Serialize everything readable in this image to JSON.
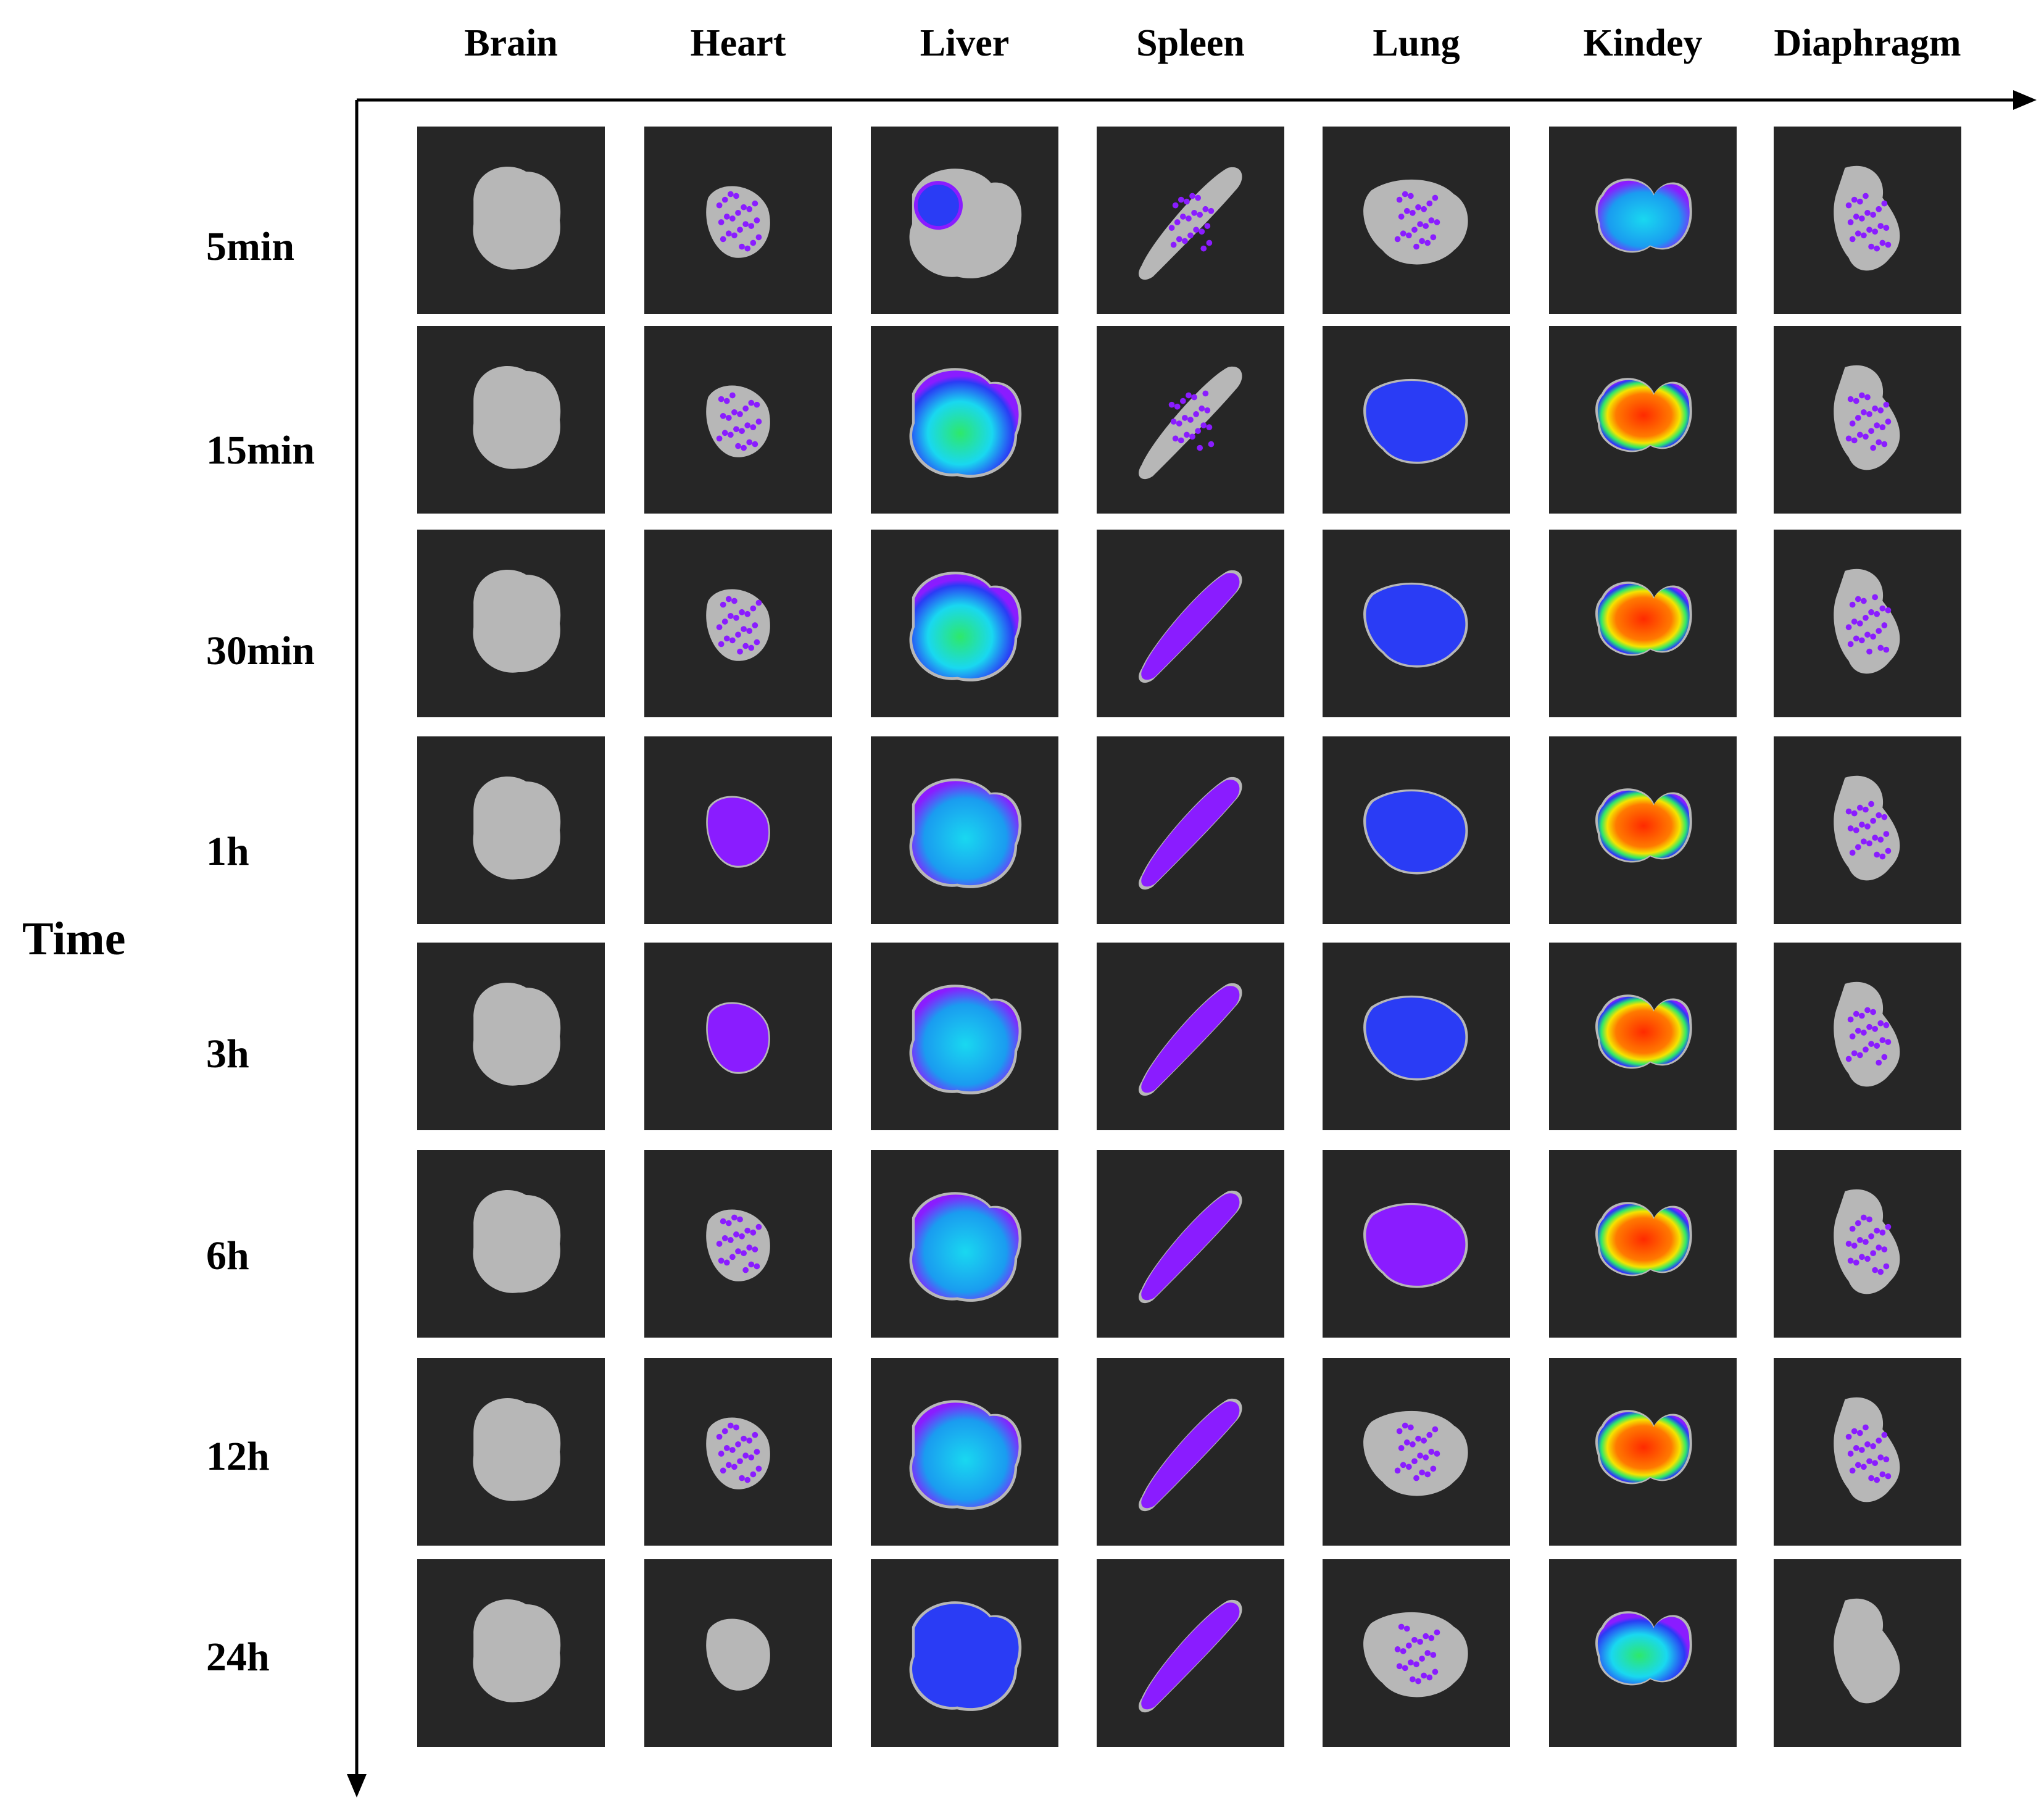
{
  "columns": [
    "Brain",
    "Heart",
    "Liver",
    "Spleen",
    "Lung",
    "Kindey",
    "Diaphragm"
  ],
  "rows": [
    "5min",
    "15min",
    "30min",
    "1h",
    "3h",
    "6h",
    "12h",
    "24h"
  ],
  "axis_label": "Time",
  "colors": {
    "background": "#262626",
    "tissue": "#c8c8c8",
    "purple": "#8a1cff",
    "blue": "#2a3cf5",
    "cyan": "#19d8f0",
    "green": "#2ee86a",
    "yellow": "#f5e400",
    "red": "#ff2a00"
  },
  "grid": [
    [
      "none",
      "dots",
      "spot-blue",
      "dots",
      "dots",
      "cyan",
      "dots"
    ],
    [
      "none",
      "dots",
      "cyan-green",
      "dots",
      "blue",
      "red",
      "dots"
    ],
    [
      "none",
      "dots",
      "cyan-green",
      "purple",
      "blue",
      "red",
      "dots"
    ],
    [
      "none",
      "purple",
      "cyan",
      "purple",
      "blue",
      "red",
      "dots"
    ],
    [
      "none",
      "purple",
      "cyan",
      "purple",
      "blue",
      "red",
      "dots"
    ],
    [
      "none",
      "dots",
      "cyan",
      "purple",
      "purple",
      "red",
      "dots"
    ],
    [
      "none",
      "dots",
      "cyan",
      "purple",
      "dots",
      "red",
      "dots"
    ],
    [
      "none",
      "none",
      "blue",
      "purple",
      "dots",
      "cyan-green",
      "none"
    ]
  ]
}
